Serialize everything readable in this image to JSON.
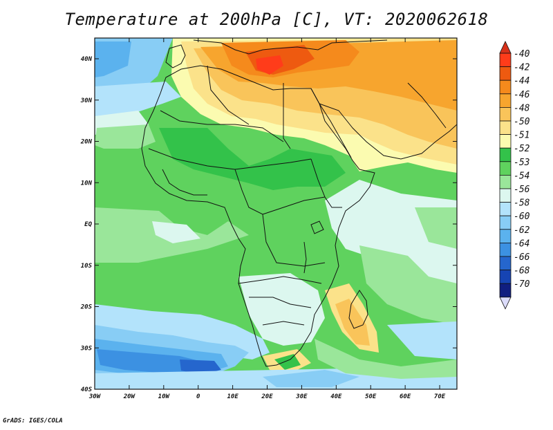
{
  "title": "Temperature at 200hPa [C], VT: 2020062618",
  "credit": "GrADS: IGES/COLA",
  "map": {
    "lon_ticks": [
      "30W",
      "20W",
      "10W",
      "0",
      "10E",
      "20E",
      "30E",
      "40E",
      "50E",
      "60E",
      "70E"
    ],
    "lat_ticks": [
      "40N",
      "30N",
      "20N",
      "10N",
      "EQ",
      "10S",
      "20S",
      "30S",
      "40S"
    ]
  },
  "legend": {
    "labels": [
      "-40",
      "-42",
      "-44",
      "-46",
      "-48",
      "-50",
      "-51",
      "-52",
      "-53",
      "-54",
      "-56",
      "-58",
      "-60",
      "-62",
      "-64",
      "-66",
      "-68",
      "-70"
    ],
    "colors": [
      "#ff3c1a",
      "#ee5a10",
      "#f58a1c",
      "#f7a52e",
      "#f9c45a",
      "#fbe28a",
      "#fbfbb0",
      "#33c24a",
      "#5fd25e",
      "#9ae69a",
      "#dcf7ef",
      "#b3e3fb",
      "#88cdf5",
      "#5bb2ee",
      "#3c91e2",
      "#2566cd",
      "#1644b3",
      "#101e80"
    ],
    "top_triangle_color": "#d8311a",
    "bottom_triangle_color": "#dcdcfa"
  }
}
